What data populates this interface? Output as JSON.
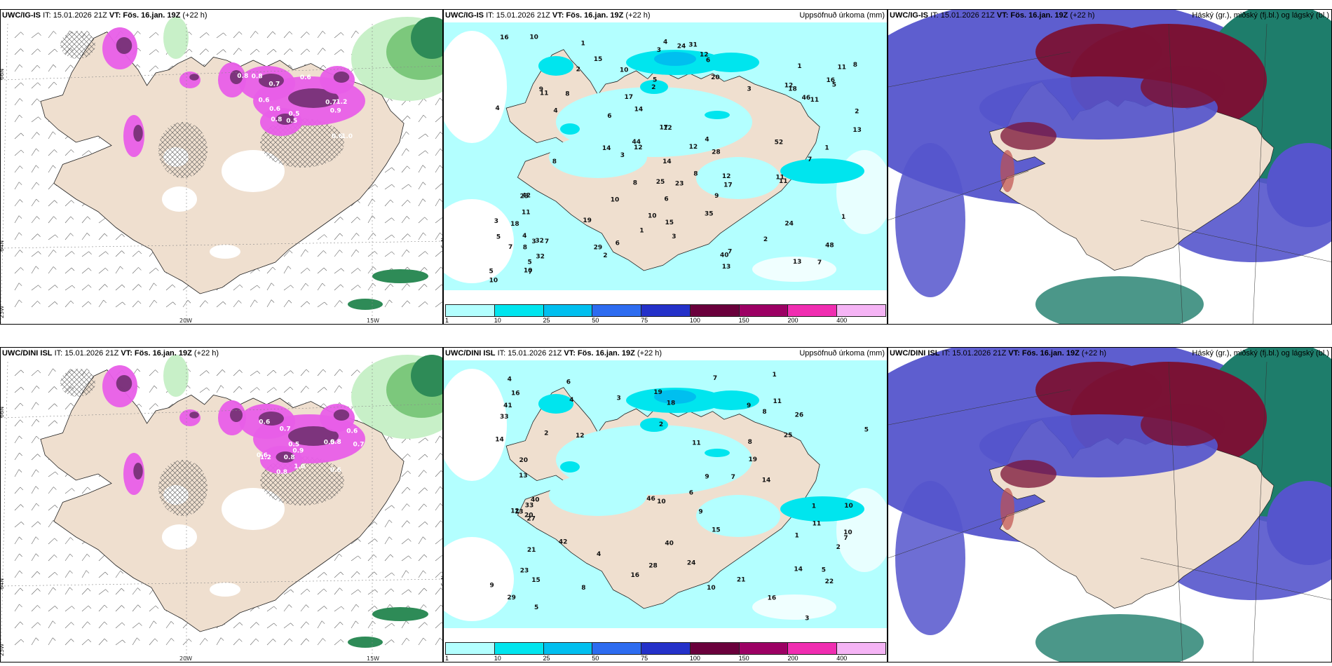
{
  "rows": [
    {
      "model": "UWC/IG-IS",
      "it": "IT: 15.01.2026 21Z",
      "vt_label": "VT:",
      "vt": "Fös. 16.jan. 19Z",
      "lead": "(+22 h)",
      "precip_values": [
        "2",
        "1",
        "12",
        "13",
        "11",
        "11",
        "28",
        "29",
        "10",
        "11",
        "18",
        "15",
        "9",
        "8",
        "6",
        "12",
        "32",
        "46",
        "31",
        "40",
        "42",
        "44",
        "52",
        "17",
        "25",
        "48",
        "19",
        "7",
        "3",
        "1",
        "8",
        "6",
        "3",
        "1",
        "35",
        "20",
        "23",
        "10",
        "14",
        "17",
        "4",
        "5",
        "13",
        "8",
        "7",
        "11",
        "4",
        "5",
        "12",
        "7",
        "14",
        "9",
        "3",
        "3",
        "32",
        "18",
        "24",
        "12",
        "8",
        "23",
        "7",
        "3",
        "5",
        "6",
        "4",
        "16",
        "17",
        "15",
        "24",
        "13",
        "12",
        "10",
        "10",
        "12",
        "8",
        "7",
        "11",
        "1",
        "5",
        "2",
        "16",
        "3",
        "4",
        "2",
        "11",
        "2",
        "1",
        "2",
        "5",
        "7",
        "14",
        "4",
        "6",
        "10",
        "10",
        "8"
      ]
    },
    {
      "model": "UWC/DINI ISL",
      "it": "IT: 15.01.2026 21Z",
      "vt_label": "VT:",
      "vt": "Fös. 16.jan. 19Z",
      "lead": "(+22 h)",
      "precip_values": [
        "1",
        "12",
        "8",
        "9",
        "6",
        "14",
        "29",
        "16",
        "23",
        "42",
        "27",
        "21",
        "28",
        "41",
        "40",
        "33",
        "24",
        "10",
        "11",
        "22",
        "19",
        "20",
        "40",
        "46",
        "16",
        "15",
        "8",
        "14",
        "7",
        "19",
        "21",
        "26",
        "7",
        "10",
        "9",
        "2",
        "5",
        "4",
        "1",
        "2",
        "13",
        "25",
        "16",
        "18",
        "33",
        "20",
        "11",
        "10",
        "9",
        "8",
        "3",
        "2",
        "4",
        "12",
        "15",
        "6",
        "7",
        "5",
        "3",
        "1",
        "13",
        "14",
        "9",
        "4",
        "10",
        "11",
        "5"
      ]
    }
  ],
  "precip_title": "Uppsöfnuð úrkoma (mm)",
  "cloud_title": "Háský (gr.), miðský (fj.bl.) og lágský (bl.)",
  "legend": {
    "labels": [
      "1",
      "10",
      "25",
      "50",
      "75",
      "100",
      "150",
      "200",
      "400"
    ],
    "colors": [
      "#b3ffff",
      "#00e5ee",
      "#00bfef",
      "#2d6cf0",
      "#2431c9",
      "#6a003c",
      "#9c0064",
      "#f02db1",
      "#f5b4f5"
    ]
  },
  "axes": {
    "lat_top": "66N",
    "lat_mid": "64N",
    "lon_left": "25W",
    "lon_mid": "20W",
    "lon_right": "15W",
    "lon_right_edge": "N°9"
  },
  "cloud_values": [
    "0.5",
    "0.6",
    "0.8",
    "0.9",
    "1.0",
    "0.7",
    "0.5",
    "0.6",
    "0.8",
    "0.7",
    "1.2",
    "0.6",
    "0.8",
    "0.6"
  ],
  "colors": {
    "land": "#efdfcf",
    "ice": "#ffffff",
    "precip_light": "#b3ffff",
    "precip_mid": "#00e5ee",
    "snow_purple": "#e85ee8",
    "snow_dark": "#6a2b6a",
    "green_light": "#c8f0c8",
    "green_dark": "#2e8b57",
    "cloud_high": "#7a1235",
    "cloud_mid": "#5555cc",
    "cloud_low": "#1e7d6b"
  }
}
